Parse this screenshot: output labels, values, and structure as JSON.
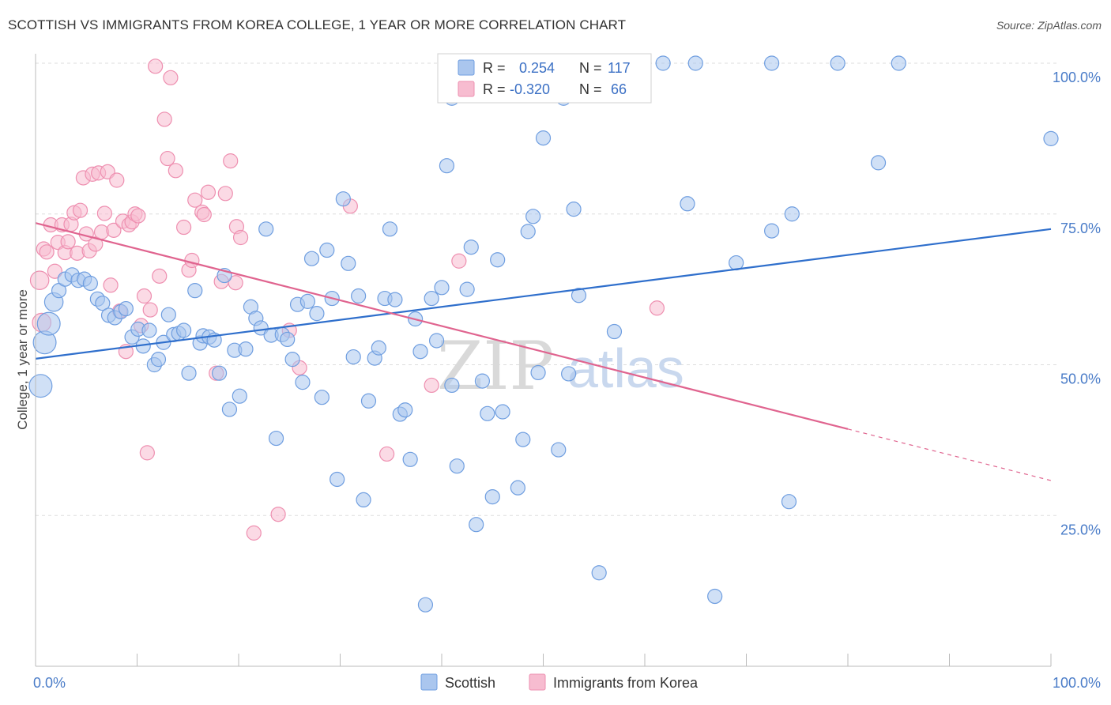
{
  "header": {
    "title": "SCOTTISH VS IMMIGRANTS FROM KOREA COLLEGE, 1 YEAR OR MORE CORRELATION CHART",
    "source": "Source: ZipAtlas.com"
  },
  "watermark": {
    "zip": "ZIP",
    "atlas": "atlas"
  },
  "colors": {
    "scottish_fill": "#aac6ee",
    "scottish_stroke": "#6f9ee0",
    "scottish_line": "#2f6fcc",
    "korea_fill": "#f7bcd0",
    "korea_stroke": "#ee8fb0",
    "korea_line": "#e0648f",
    "grid": "#dddddd",
    "tick_text": "#4a7cc8"
  },
  "legend_top": {
    "rows": [
      {
        "r_label": "R =",
        "r_value": "0.254",
        "n_label": "N =",
        "n_value": "117"
      },
      {
        "r_label": "R =",
        "r_value": "-0.320",
        "n_label": "N =",
        "n_value": "66"
      }
    ]
  },
  "legend_bottom": {
    "items": [
      "Scottish",
      "Immigrants from Korea"
    ]
  },
  "chart_data": {
    "type": "scatter",
    "title": "SCOTTISH VS IMMIGRANTS FROM KOREA COLLEGE, 1 YEAR OR MORE CORRELATION CHART",
    "ylabel": "College, 1 year or more",
    "xlabel": "",
    "xlim": [
      0,
      100
    ],
    "ylim": [
      0,
      105
    ],
    "x_tick_labels": [
      "0.0%",
      "100.0%"
    ],
    "y_ticks": [
      {
        "value": 25,
        "label": "25.0%"
      },
      {
        "value": 50,
        "label": "50.0%"
      },
      {
        "value": 75,
        "label": "75.0%"
      },
      {
        "value": 100,
        "label": "100.0%"
      }
    ],
    "grid": true,
    "legend_position": "bottom",
    "series": [
      {
        "name": "Scottish",
        "r": 0.254,
        "n": 117,
        "trend": {
          "x": [
            0,
            100
          ],
          "y": [
            51.0,
            72.5
          ],
          "solid_until": 100
        },
        "points": [
          [
            0.5,
            46.5,
            1.6
          ],
          [
            0.9,
            53.7,
            1.6
          ],
          [
            1.3,
            56.8,
            1.6
          ],
          [
            1.8,
            60.4,
            1.3
          ],
          [
            2.3,
            62.3,
            1.0
          ],
          [
            2.9,
            64.2,
            1.0
          ],
          [
            3.6,
            64.9,
            1.0
          ],
          [
            4.2,
            64.0,
            1.0
          ],
          [
            4.8,
            64.2,
            1.0
          ],
          [
            5.4,
            63.5,
            1.0
          ],
          [
            6.1,
            60.9,
            1.0
          ],
          [
            6.6,
            60.2,
            1.0
          ],
          [
            7.2,
            58.2,
            1.0
          ],
          [
            7.8,
            57.8,
            1.0
          ],
          [
            8.4,
            58.8,
            1.0
          ],
          [
            8.9,
            59.3,
            1.0
          ],
          [
            9.5,
            54.6,
            1.0
          ],
          [
            10.1,
            55.9,
            1.0
          ],
          [
            10.6,
            53.1,
            1.0
          ],
          [
            11.2,
            55.7,
            1.0
          ],
          [
            11.7,
            50.0,
            1.0
          ],
          [
            12.1,
            50.9,
            1.0
          ],
          [
            12.6,
            53.7,
            1.0
          ],
          [
            13.1,
            58.3,
            1.0
          ],
          [
            13.6,
            55.0,
            1.0
          ],
          [
            14.1,
            55.2,
            1.0
          ],
          [
            14.6,
            55.7,
            1.0
          ],
          [
            15.1,
            48.6,
            1.0
          ],
          [
            15.7,
            62.3,
            1.0
          ],
          [
            16.2,
            53.6,
            1.0
          ],
          [
            16.5,
            54.8,
            1.0
          ],
          [
            17.1,
            54.6,
            1.0
          ],
          [
            17.6,
            54.1,
            1.0
          ],
          [
            18.1,
            48.6,
            1.0
          ],
          [
            18.6,
            64.8,
            1.0
          ],
          [
            19.1,
            42.6,
            1.0
          ],
          [
            19.6,
            52.4,
            1.0
          ],
          [
            20.1,
            44.8,
            1.0
          ],
          [
            20.7,
            52.6,
            1.0
          ],
          [
            21.2,
            59.6,
            1.0
          ],
          [
            21.7,
            57.7,
            1.0
          ],
          [
            22.2,
            56.1,
            1.0
          ],
          [
            22.7,
            72.5,
            1.0
          ],
          [
            23.2,
            54.9,
            1.0
          ],
          [
            23.7,
            37.8,
            1.0
          ],
          [
            24.3,
            55.0,
            1.0
          ],
          [
            24.8,
            54.2,
            1.0
          ],
          [
            25.3,
            50.9,
            1.0
          ],
          [
            25.8,
            60.0,
            1.0
          ],
          [
            26.3,
            47.1,
            1.0
          ],
          [
            26.8,
            60.5,
            1.0
          ],
          [
            27.2,
            67.6,
            1.0
          ],
          [
            27.7,
            58.5,
            1.0
          ],
          [
            28.2,
            44.6,
            1.0
          ],
          [
            28.7,
            69.0,
            1.0
          ],
          [
            29.2,
            61.0,
            1.0
          ],
          [
            29.7,
            31.0,
            1.0
          ],
          [
            30.3,
            77.5,
            1.0
          ],
          [
            30.8,
            66.8,
            1.0
          ],
          [
            31.3,
            51.3,
            1.0
          ],
          [
            31.8,
            61.4,
            1.0
          ],
          [
            32.3,
            27.6,
            1.0
          ],
          [
            32.8,
            44.0,
            1.0
          ],
          [
            33.4,
            51.1,
            1.0
          ],
          [
            33.8,
            52.8,
            1.0
          ],
          [
            34.4,
            61.0,
            1.0
          ],
          [
            34.9,
            72.5,
            1.0
          ],
          [
            35.4,
            60.8,
            1.0
          ],
          [
            35.9,
            41.8,
            1.0
          ],
          [
            36.4,
            42.5,
            1.0
          ],
          [
            36.9,
            34.3,
            1.0
          ],
          [
            37.4,
            57.6,
            1.0
          ],
          [
            37.9,
            52.2,
            1.0
          ],
          [
            38.4,
            10.2,
            1.0
          ],
          [
            39.0,
            61.0,
            1.0
          ],
          [
            39.5,
            54.0,
            1.0
          ],
          [
            40.0,
            62.8,
            1.0
          ],
          [
            40.5,
            83.0,
            1.0
          ],
          [
            41.0,
            94.2,
            1.0
          ],
          [
            41.5,
            33.2,
            1.0
          ],
          [
            41.0,
            46.6,
            1.0
          ],
          [
            42.5,
            62.5,
            1.0
          ],
          [
            42.9,
            69.5,
            1.0
          ],
          [
            43.4,
            23.5,
            1.0
          ],
          [
            44.0,
            47.3,
            1.0
          ],
          [
            44.5,
            41.9,
            1.0
          ],
          [
            45.0,
            28.1,
            1.0
          ],
          [
            45.5,
            67.4,
            1.0
          ],
          [
            46.0,
            42.2,
            1.0
          ],
          [
            47.5,
            29.6,
            1.0
          ],
          [
            48.0,
            37.6,
            1.0
          ],
          [
            48.5,
            72.1,
            1.0
          ],
          [
            49.0,
            74.6,
            1.0
          ],
          [
            49.5,
            48.7,
            1.0
          ],
          [
            50.0,
            87.6,
            1.0
          ],
          [
            51.0,
            96.0,
            1.0
          ],
          [
            51.5,
            35.9,
            1.0
          ],
          [
            52.0,
            94.2,
            1.0
          ],
          [
            52.5,
            48.5,
            1.0
          ],
          [
            53.0,
            75.8,
            1.0
          ],
          [
            53.5,
            61.5,
            1.0
          ],
          [
            55.5,
            15.5,
            1.0
          ],
          [
            57.0,
            55.5,
            1.0
          ],
          [
            59.2,
            100.0,
            1.0
          ],
          [
            61.8,
            100.0,
            1.0
          ],
          [
            64.2,
            76.7,
            1.0
          ],
          [
            65.0,
            100.0,
            1.0
          ],
          [
            66.9,
            11.6,
            1.0
          ],
          [
            69.0,
            66.9,
            1.0
          ],
          [
            72.5,
            100.0,
            1.0
          ],
          [
            72.5,
            72.2,
            1.0
          ],
          [
            74.5,
            75.0,
            1.0
          ],
          [
            74.2,
            27.3,
            1.0
          ],
          [
            79.0,
            100.0,
            1.0
          ],
          [
            83.0,
            83.5,
            1.0
          ],
          [
            85.0,
            100.0,
            1.0
          ],
          [
            100.0,
            87.5,
            1.0
          ]
        ]
      },
      {
        "name": "Immigrants from Korea",
        "r": -0.32,
        "n": 66,
        "trend": {
          "x": [
            0,
            100
          ],
          "y": [
            73.5,
            30.8
          ],
          "solid_until": 80
        },
        "points": [
          [
            0.4,
            64.0,
            1.3
          ],
          [
            0.6,
            57.0,
            1.3
          ],
          [
            0.8,
            69.2,
            1.0
          ],
          [
            1.1,
            68.7,
            1.0
          ],
          [
            1.5,
            73.2,
            1.0
          ],
          [
            1.9,
            65.5,
            1.0
          ],
          [
            2.2,
            70.3,
            1.0
          ],
          [
            2.6,
            73.2,
            1.0
          ],
          [
            2.9,
            68.6,
            1.0
          ],
          [
            3.2,
            70.4,
            1.0
          ],
          [
            3.5,
            73.3,
            1.0
          ],
          [
            3.8,
            75.2,
            1.0
          ],
          [
            4.1,
            68.5,
            1.0
          ],
          [
            4.4,
            75.6,
            1.0
          ],
          [
            4.7,
            81.0,
            1.0
          ],
          [
            5.0,
            71.7,
            1.0
          ],
          [
            5.3,
            68.9,
            1.0
          ],
          [
            5.6,
            81.6,
            1.0
          ],
          [
            5.9,
            70.0,
            1.0
          ],
          [
            6.2,
            81.8,
            1.0
          ],
          [
            6.5,
            72.0,
            1.0
          ],
          [
            6.8,
            75.1,
            1.0
          ],
          [
            7.1,
            82.0,
            1.0
          ],
          [
            7.4,
            63.2,
            1.0
          ],
          [
            7.7,
            72.3,
            1.0
          ],
          [
            8.0,
            80.6,
            1.0
          ],
          [
            8.3,
            58.9,
            1.0
          ],
          [
            8.6,
            73.8,
            1.0
          ],
          [
            8.9,
            52.2,
            1.0
          ],
          [
            9.2,
            73.2,
            1.0
          ],
          [
            9.5,
            73.7,
            1.0
          ],
          [
            9.8,
            75.0,
            1.0
          ],
          [
            10.1,
            74.7,
            1.0
          ],
          [
            10.4,
            56.5,
            1.0
          ],
          [
            10.7,
            61.4,
            1.0
          ],
          [
            11.0,
            35.4,
            1.0
          ],
          [
            11.3,
            59.1,
            1.0
          ],
          [
            11.8,
            99.5,
            1.0
          ],
          [
            12.2,
            64.7,
            1.0
          ],
          [
            12.7,
            90.7,
            1.0
          ],
          [
            13.0,
            84.2,
            1.0
          ],
          [
            13.3,
            97.6,
            1.0
          ],
          [
            13.8,
            82.2,
            1.0
          ],
          [
            14.6,
            72.8,
            1.0
          ],
          [
            15.1,
            65.7,
            1.0
          ],
          [
            15.4,
            67.3,
            1.0
          ],
          [
            15.7,
            77.3,
            1.0
          ],
          [
            16.4,
            75.3,
            1.0
          ],
          [
            16.6,
            74.9,
            1.0
          ],
          [
            17.0,
            78.6,
            1.0
          ],
          [
            17.8,
            48.6,
            1.0
          ],
          [
            18.3,
            63.8,
            1.0
          ],
          [
            18.7,
            78.4,
            1.0
          ],
          [
            19.2,
            83.8,
            1.0
          ],
          [
            19.7,
            63.6,
            1.0
          ],
          [
            19.8,
            72.9,
            1.0
          ],
          [
            20.2,
            71.1,
            1.0
          ],
          [
            21.5,
            22.1,
            1.0
          ],
          [
            23.9,
            25.2,
            1.0
          ],
          [
            25.0,
            55.7,
            1.0
          ],
          [
            26.0,
            49.5,
            1.0
          ],
          [
            31.0,
            76.3,
            1.0
          ],
          [
            34.6,
            35.2,
            1.0
          ],
          [
            39.0,
            46.6,
            1.0
          ],
          [
            41.7,
            67.2,
            1.0
          ],
          [
            61.2,
            59.4,
            1.0
          ]
        ]
      }
    ]
  }
}
